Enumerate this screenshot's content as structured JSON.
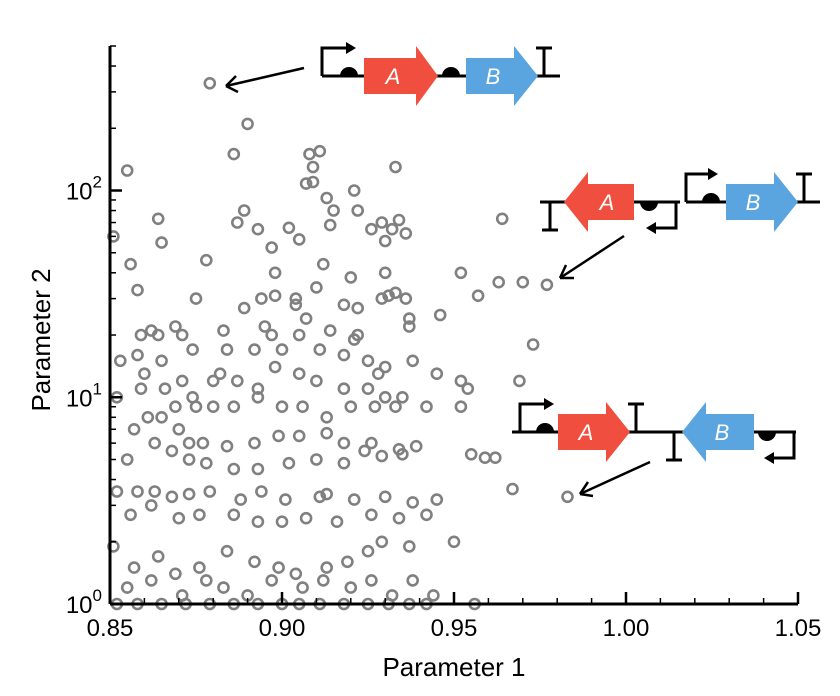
{
  "chart_data": {
    "type": "scatter",
    "xlabel": "Parameter 1",
    "ylabel": "Parameter 2",
    "xlim": [
      0.85,
      1.05
    ],
    "ylim": [
      1,
      500
    ],
    "yscale": "log",
    "grid": false,
    "marker_color": "#808080",
    "x_ticks": [
      {
        "value": 0.85,
        "label": "0.85"
      },
      {
        "value": 0.9,
        "label": "0.90"
      },
      {
        "value": 0.95,
        "label": "0.95"
      },
      {
        "value": 1.0,
        "label": "1.00"
      },
      {
        "value": 1.05,
        "label": "1.05"
      }
    ],
    "y_ticks": [
      {
        "value": 1,
        "base": "10",
        "exp": "0"
      },
      {
        "value": 10,
        "base": "10",
        "exp": "1"
      },
      {
        "value": 100,
        "base": "10",
        "exp": "2"
      }
    ],
    "annotations": [
      {
        "name": "convergent-construct",
        "target": {
          "x": 0.879,
          "y": 330
        },
        "genes": [
          "A",
          "B"
        ]
      },
      {
        "name": "divergent-construct",
        "target": {
          "x": 0.977,
          "y": 35
        },
        "genes": [
          "A",
          "B"
        ]
      },
      {
        "name": "tandem-opposite-construct",
        "target": {
          "x": 0.983,
          "y": 3.3
        },
        "genes": [
          "A",
          "B"
        ]
      }
    ],
    "gene_colors": {
      "A": "#f04e3e",
      "B": "#5aa5e0"
    },
    "points": [
      [
        0.879,
        330
      ],
      [
        0.89,
        210
      ],
      [
        0.886,
        150
      ],
      [
        0.911,
        155
      ],
      [
        0.908,
        150
      ],
      [
        0.909,
        130
      ],
      [
        0.909,
        110
      ],
      [
        0.907,
        108
      ],
      [
        0.913,
        92
      ],
      [
        0.915,
        80
      ],
      [
        0.921,
        100
      ],
      [
        0.922,
        80
      ],
      [
        0.933,
        130
      ],
      [
        0.929,
        70
      ],
      [
        0.932,
        65
      ],
      [
        0.934,
        72
      ],
      [
        0.93,
        57
      ],
      [
        0.936,
        62
      ],
      [
        0.964,
        73
      ],
      [
        0.855,
        125
      ],
      [
        0.864,
        73
      ],
      [
        0.865,
        56
      ],
      [
        0.851,
        60
      ],
      [
        0.856,
        44
      ],
      [
        0.858,
        33
      ],
      [
        0.889,
        80
      ],
      [
        0.887,
        70
      ],
      [
        0.893,
        65
      ],
      [
        0.902,
        66
      ],
      [
        0.905,
        58
      ],
      [
        0.914,
        68
      ],
      [
        0.926,
        65
      ],
      [
        0.912,
        44
      ],
      [
        0.897,
        53
      ],
      [
        0.878,
        46
      ],
      [
        0.898,
        40
      ],
      [
        0.92,
        38
      ],
      [
        0.93,
        40
      ],
      [
        0.952,
        40
      ],
      [
        0.963,
        36
      ],
      [
        0.97,
        36
      ],
      [
        0.977,
        35
      ],
      [
        0.957,
        31
      ],
      [
        0.894,
        30
      ],
      [
        0.898,
        31
      ],
      [
        0.904,
        30
      ],
      [
        0.91,
        34
      ],
      [
        0.904,
        28
      ],
      [
        0.889,
        27
      ],
      [
        0.895,
        22
      ],
      [
        0.907,
        24
      ],
      [
        0.918,
        28
      ],
      [
        0.922,
        27
      ],
      [
        0.931,
        31
      ],
      [
        0.929,
        30
      ],
      [
        0.933,
        32
      ],
      [
        0.936,
        30
      ],
      [
        0.937,
        24
      ],
      [
        0.937,
        22
      ],
      [
        0.946,
        25
      ],
      [
        0.875,
        30
      ],
      [
        0.862,
        21
      ],
      [
        0.859,
        20
      ],
      [
        0.869,
        22
      ],
      [
        0.871,
        20
      ],
      [
        0.864,
        20
      ],
      [
        0.874,
        17
      ],
      [
        0.883,
        21
      ],
      [
        0.897,
        20
      ],
      [
        0.905,
        20
      ],
      [
        0.914,
        21
      ],
      [
        0.921,
        19
      ],
      [
        0.922,
        20
      ],
      [
        0.884,
        17
      ],
      [
        0.892,
        17
      ],
      [
        0.9,
        17
      ],
      [
        0.911,
        17
      ],
      [
        0.918,
        16
      ],
      [
        0.925,
        15
      ],
      [
        0.93,
        14
      ],
      [
        0.938,
        15
      ],
      [
        0.928,
        13
      ],
      [
        0.945,
        13
      ],
      [
        0.952,
        12
      ],
      [
        0.954,
        11
      ],
      [
        0.969,
        12
      ],
      [
        0.973,
        18
      ],
      [
        0.853,
        15
      ],
      [
        0.858,
        16
      ],
      [
        0.865,
        15
      ],
      [
        0.86,
        13
      ],
      [
        0.866,
        11
      ],
      [
        0.871,
        12
      ],
      [
        0.874,
        10
      ],
      [
        0.869,
        9
      ],
      [
        0.875,
        9
      ],
      [
        0.882,
        13
      ],
      [
        0.88,
        12
      ],
      [
        0.887,
        12
      ],
      [
        0.893,
        11
      ],
      [
        0.898,
        14
      ],
      [
        0.905,
        13
      ],
      [
        0.91,
        12
      ],
      [
        0.918,
        11
      ],
      [
        0.925,
        11
      ],
      [
        0.93,
        10
      ],
      [
        0.935,
        10
      ],
      [
        0.852,
        10
      ],
      [
        0.859,
        11
      ],
      [
        0.861,
        8
      ],
      [
        0.865,
        8
      ],
      [
        0.87,
        7
      ],
      [
        0.88,
        9
      ],
      [
        0.886,
        9
      ],
      [
        0.893,
        10
      ],
      [
        0.9,
        9
      ],
      [
        0.906,
        9
      ],
      [
        0.913,
        8
      ],
      [
        0.92,
        9
      ],
      [
        0.927,
        9
      ],
      [
        0.933,
        9
      ],
      [
        0.942,
        9
      ],
      [
        0.952,
        9
      ],
      [
        0.857,
        7
      ],
      [
        0.863,
        6
      ],
      [
        0.873,
        6
      ],
      [
        0.877,
        6
      ],
      [
        0.884,
        5.8
      ],
      [
        0.892,
        6
      ],
      [
        0.899,
        6.5
      ],
      [
        0.905,
        6.5
      ],
      [
        0.913,
        6.7
      ],
      [
        0.918,
        6.0
      ],
      [
        0.926,
        6.0
      ],
      [
        0.934,
        5.6
      ],
      [
        0.939,
        5.8
      ],
      [
        0.955,
        5.3
      ],
      [
        0.959,
        5.1
      ],
      [
        0.962,
        5.1
      ],
      [
        0.855,
        5.0
      ],
      [
        0.868,
        5.5
      ],
      [
        0.873,
        5.0
      ],
      [
        0.878,
        4.8
      ],
      [
        0.886,
        4.5
      ],
      [
        0.893,
        4.5
      ],
      [
        0.902,
        4.8
      ],
      [
        0.91,
        5.0
      ],
      [
        0.918,
        4.8
      ],
      [
        0.924,
        5.5
      ],
      [
        0.929,
        5.2
      ],
      [
        0.935,
        5.3
      ],
      [
        0.852,
        3.5
      ],
      [
        0.858,
        3.5
      ],
      [
        0.863,
        3.5
      ],
      [
        0.868,
        3.3
      ],
      [
        0.873,
        3.4
      ],
      [
        0.879,
        3.5
      ],
      [
        0.888,
        3.2
      ],
      [
        0.894,
        3.5
      ],
      [
        0.901,
        3.2
      ],
      [
        0.911,
        3.3
      ],
      [
        0.913,
        3.4
      ],
      [
        0.921,
        3.2
      ],
      [
        0.93,
        3.3
      ],
      [
        0.938,
        3.1
      ],
      [
        0.945,
        3.2
      ],
      [
        0.967,
        3.6
      ],
      [
        0.983,
        3.3
      ],
      [
        0.856,
        2.7
      ],
      [
        0.862,
        3.0
      ],
      [
        0.87,
        2.6
      ],
      [
        0.876,
        2.7
      ],
      [
        0.886,
        2.7
      ],
      [
        0.893,
        2.5
      ],
      [
        0.9,
        2.5
      ],
      [
        0.907,
        2.6
      ],
      [
        0.916,
        2.5
      ],
      [
        0.926,
        2.7
      ],
      [
        0.934,
        2.6
      ],
      [
        0.942,
        2.7
      ],
      [
        0.851,
        1.9
      ],
      [
        0.857,
        1.5
      ],
      [
        0.864,
        1.7
      ],
      [
        0.869,
        1.4
      ],
      [
        0.876,
        1.5
      ],
      [
        0.884,
        1.8
      ],
      [
        0.892,
        1.6
      ],
      [
        0.899,
        1.5
      ],
      [
        0.904,
        1.4
      ],
      [
        0.913,
        1.5
      ],
      [
        0.919,
        1.6
      ],
      [
        0.925,
        1.8
      ],
      [
        0.929,
        2.0
      ],
      [
        0.937,
        1.9
      ],
      [
        0.95,
        2.0
      ],
      [
        0.855,
        1.2
      ],
      [
        0.862,
        1.3
      ],
      [
        0.871,
        1.1
      ],
      [
        0.878,
        1.3
      ],
      [
        0.883,
        1.2
      ],
      [
        0.89,
        1.1
      ],
      [
        0.897,
        1.3
      ],
      [
        0.906,
        1.2
      ],
      [
        0.912,
        1.3
      ],
      [
        0.92,
        1.2
      ],
      [
        0.926,
        1.3
      ],
      [
        0.932,
        1.1
      ],
      [
        0.938,
        1.3
      ],
      [
        0.944,
        1.1
      ],
      [
        0.852,
        1.0
      ],
      [
        0.858,
        1.0
      ],
      [
        0.865,
        1.0
      ],
      [
        0.872,
        1.0
      ],
      [
        0.879,
        1.0
      ],
      [
        0.886,
        1.0
      ],
      [
        0.893,
        1.0
      ],
      [
        0.9,
        1.0
      ],
      [
        0.905,
        1.0
      ],
      [
        0.911,
        1.0
      ],
      [
        0.918,
        1.0
      ],
      [
        0.925,
        1.0
      ],
      [
        0.931,
        1.0
      ],
      [
        0.937,
        1.0
      ],
      [
        0.942,
        1.0
      ],
      [
        0.956,
        1.0
      ]
    ]
  }
}
